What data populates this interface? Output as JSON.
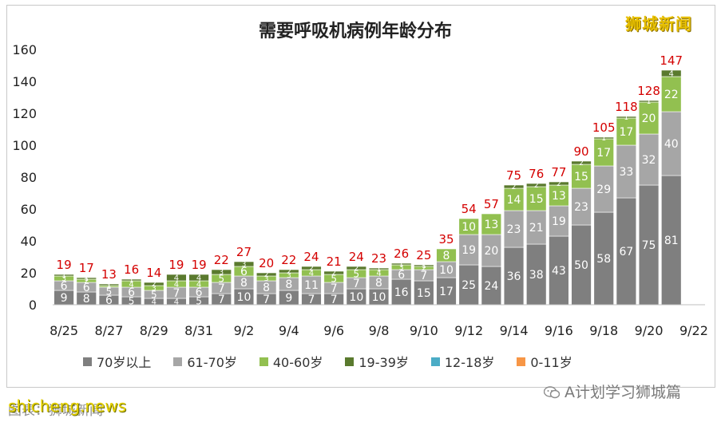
{
  "chart_data": {
    "type": "bar",
    "stacked": true,
    "title": "需要呼吸机病例年龄分布",
    "categories": [
      "8/25",
      "8/26",
      "8/27",
      "8/28",
      "8/29",
      "8/30",
      "8/31",
      "9/1",
      "9/2",
      "9/3",
      "9/4",
      "9/5",
      "9/6",
      "9/7",
      "9/8",
      "9/9",
      "9/10",
      "9/11",
      "9/12",
      "9/13",
      "9/14",
      "9/15",
      "9/16",
      "9/17",
      "9/18",
      "9/19",
      "9/20",
      "9/21",
      "9/22"
    ],
    "x_tick_labels": [
      "8/25",
      "8/27",
      "8/29",
      "8/31",
      "9/2",
      "9/4",
      "9/6",
      "9/8",
      "9/10",
      "9/12",
      "9/14",
      "9/16",
      "9/18",
      "9/20",
      "9/22"
    ],
    "ylim": [
      0,
      160
    ],
    "yticks": [
      0,
      20,
      40,
      60,
      80,
      100,
      120,
      140,
      160
    ],
    "series": [
      {
        "name": "70岁以上",
        "color": "#7f7f7f",
        "values": [
          9,
          8,
          6,
          5,
          4,
          4,
          5,
          7,
          10,
          7,
          9,
          7,
          7,
          10,
          10,
          16,
          15,
          17,
          25,
          24,
          36,
          38,
          43,
          50,
          58,
          67,
          75,
          81,
          null
        ]
      },
      {
        "name": "61-70岁",
        "color": "#a6a6a6",
        "values": [
          6,
          6,
          5,
          6,
          5,
          7,
          6,
          7,
          8,
          8,
          8,
          11,
          7,
          7,
          8,
          6,
          7,
          10,
          19,
          20,
          23,
          21,
          19,
          23,
          29,
          33,
          32,
          40,
          null
        ]
      },
      {
        "name": "40-60岁",
        "color": "#92c050",
        "values": [
          3,
          2,
          1,
          4,
          3,
          4,
          4,
          5,
          6,
          3,
          3,
          4,
          5,
          5,
          4,
          3,
          2,
          8,
          10,
          13,
          14,
          15,
          13,
          15,
          17,
          17,
          20,
          22,
          null
        ]
      },
      {
        "name": "19-39岁",
        "color": "#5a7a2e",
        "values": [
          1,
          1,
          1,
          1,
          2,
          4,
          4,
          3,
          3,
          2,
          2,
          2,
          2,
          2,
          1,
          1,
          1,
          0,
          0,
          0,
          2,
          2,
          2,
          2,
          1,
          1,
          1,
          4,
          null
        ]
      },
      {
        "name": "12-18岁",
        "color": "#4bacc6",
        "values": [
          0,
          0,
          0,
          0,
          0,
          0,
          0,
          0,
          0,
          0,
          0,
          0,
          0,
          0,
          0,
          0,
          0,
          0,
          0,
          0,
          0,
          0,
          0,
          0,
          0,
          0,
          0,
          0,
          null
        ]
      },
      {
        "name": "0-11岁",
        "color": "#f79646",
        "values": [
          0,
          0,
          0,
          0,
          0,
          0,
          0,
          0,
          0,
          0,
          0,
          0,
          0,
          0,
          0,
          0,
          0,
          0,
          0,
          0,
          0,
          0,
          0,
          0,
          0,
          0,
          0,
          0,
          null
        ]
      }
    ],
    "totals": [
      19,
      17,
      13,
      16,
      14,
      19,
      19,
      22,
      27,
      20,
      22,
      24,
      21,
      24,
      23,
      26,
      25,
      35,
      54,
      57,
      75,
      76,
      77,
      90,
      105,
      118,
      128,
      147,
      null
    ],
    "inner_labels": {
      "70岁以上": [
        9,
        8,
        6,
        5,
        4,
        4,
        5,
        7,
        10,
        7,
        9,
        7,
        7,
        10,
        10,
        16,
        15,
        17,
        25,
        24,
        36,
        38,
        43,
        50,
        58,
        67,
        75,
        81,
        null
      ],
      "61-70岁": [
        6,
        6,
        5,
        6,
        5,
        7,
        6,
        7,
        8,
        8,
        8,
        11,
        7,
        7,
        8,
        6,
        7,
        10,
        19,
        20,
        23,
        21,
        19,
        23,
        29,
        33,
        32,
        40,
        null
      ],
      "40-60岁": [
        3,
        2,
        1,
        4,
        3,
        4,
        4,
        5,
        6,
        3,
        3,
        4,
        5,
        5,
        4,
        3,
        2,
        8,
        10,
        13,
        14,
        15,
        13,
        15,
        17,
        17,
        20,
        22,
        null
      ],
      "19-39岁": [
        1,
        1,
        1,
        1,
        2,
        4,
        4,
        3,
        3,
        2,
        2,
        2,
        2,
        2,
        1,
        1,
        1,
        null,
        null,
        null,
        2,
        2,
        2,
        2,
        1,
        1,
        1,
        4,
        null
      ]
    },
    "grid": false,
    "legend_position": "bottom",
    "total_label_color": "#d40000"
  },
  "watermarks": {
    "brand": "狮城新闻",
    "left": "shicheng.news",
    "left_under": "图表：狮城新闻",
    "right": "A计划学习狮城篇"
  }
}
